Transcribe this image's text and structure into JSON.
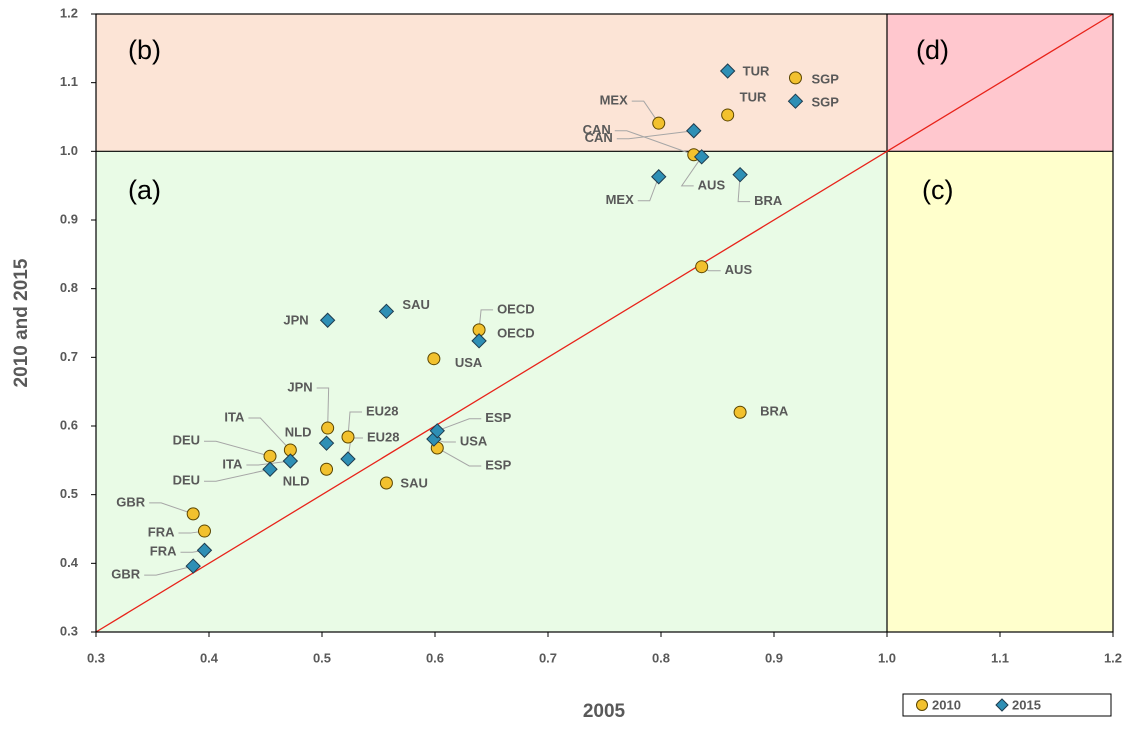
{
  "chart_data": {
    "type": "scatter",
    "xlabel": "2005",
    "ylabel": "2010 and 2015",
    "xlim": [
      0.3,
      1.2
    ],
    "ylim": [
      0.3,
      1.2
    ],
    "xticks": [
      0.3,
      0.4,
      0.5,
      0.6,
      0.7,
      0.8,
      0.9,
      {
        "value": 1,
        "label": "1.0"
      },
      1.1,
      1.2
    ],
    "yticks": [
      0.3,
      0.4,
      0.5,
      0.6,
      0.7,
      0.8,
      0.9,
      {
        "value": 1,
        "label": "1.0"
      },
      1.1,
      1.2
    ],
    "threshold": 1,
    "regions": [
      "(a)",
      "(b)",
      "(c)",
      "(d)"
    ],
    "series": [
      {
        "name": "2010",
        "color": "#f2c12e",
        "marker": "circle",
        "labels": [
          "GBR",
          "FRA",
          "DEU",
          "ITA",
          "NLD",
          "JPN",
          "EU28",
          "SAU",
          "USA",
          "ESP",
          "OECD",
          "AUS",
          "BRA",
          "MEX",
          "CAN",
          "TUR",
          "SGP"
        ],
        "x": [
          0.386,
          0.396,
          0.454,
          0.472,
          0.504,
          0.505,
          0.523,
          0.557,
          0.599,
          0.602,
          0.639,
          0.836,
          0.87,
          0.798,
          0.829,
          0.859,
          0.919
        ],
        "y": [
          0.472,
          0.447,
          0.556,
          0.565,
          0.537,
          0.597,
          0.584,
          0.517,
          0.698,
          0.568,
          0.74,
          0.832,
          0.62,
          1.041,
          0.995,
          1.053,
          1.107
        ]
      },
      {
        "name": "2015",
        "color": "#2e8fb5",
        "marker": "diamond",
        "labels": [
          "GBR",
          "FRA",
          "DEU",
          "ITA",
          "NLD",
          "JPN",
          "EU28",
          "SAU",
          "USA",
          "ESP",
          "OECD",
          "AUS",
          "BRA",
          "MEX",
          "CAN",
          "TUR",
          "SGP"
        ],
        "x": [
          0.386,
          0.396,
          0.454,
          0.472,
          0.504,
          0.505,
          0.523,
          0.557,
          0.599,
          0.602,
          0.639,
          0.836,
          0.87,
          0.798,
          0.829,
          0.859,
          0.919
        ],
        "y": [
          0.396,
          0.419,
          0.537,
          0.549,
          0.575,
          0.754,
          0.552,
          0.767,
          0.581,
          0.593,
          0.724,
          0.992,
          0.966,
          0.963,
          1.03,
          1.117,
          1.073
        ]
      }
    ]
  }
}
